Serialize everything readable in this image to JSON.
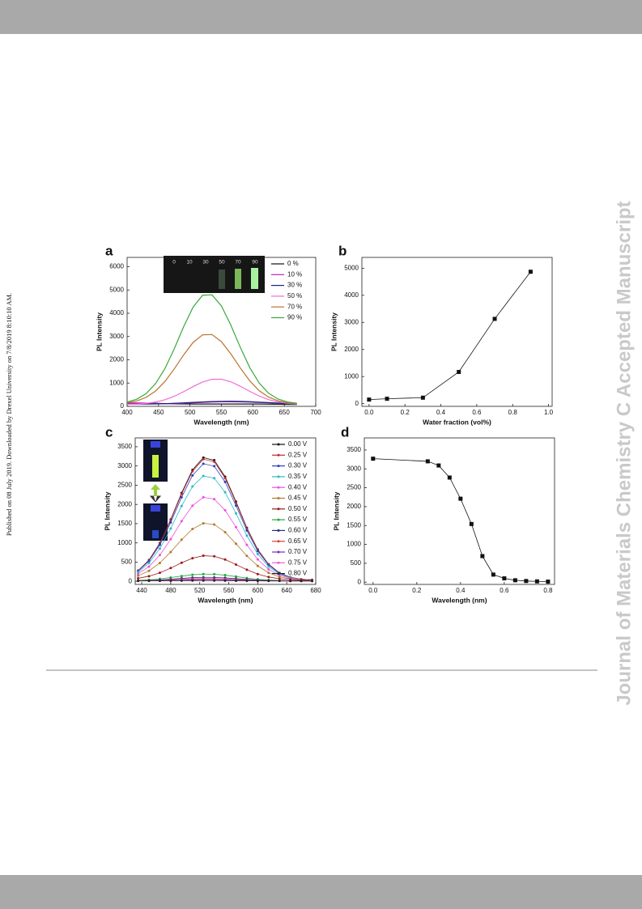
{
  "sidebar_left": "Published on 08 July 2019. Downloaded by Drexel University on 7/8/2019 8:10:10 AM.",
  "sidebar_right": "Journal of Materials Chemistry C Accepted Manuscript",
  "chart_data": [
    {
      "type": "line",
      "panel_label": "a",
      "xlabel": "Wavelength (nm)",
      "ylabel": "PL Intensity",
      "inset_labels": [
        "0",
        "10",
        "30",
        "50",
        "70",
        "90"
      ],
      "xlim": [
        400,
        700
      ],
      "xticks": [
        400,
        450,
        500,
        550,
        600,
        650,
        700
      ],
      "ylim": [
        0,
        6400
      ],
      "yticks": [
        0,
        1000,
        2000,
        3000,
        4000,
        5000,
        6000
      ],
      "x": [
        400,
        415,
        430,
        445,
        460,
        475,
        490,
        505,
        520,
        535,
        550,
        565,
        580,
        595,
        610,
        625,
        640,
        655,
        670
      ],
      "series": [
        {
          "name": "0  %",
          "color": "#111111",
          "values": [
            120,
            130,
            135,
            130,
            120,
            110,
            105,
            100,
            100,
            100,
            100,
            100,
            100,
            100,
            100,
            95,
            90,
            85,
            80
          ]
        },
        {
          "name": "10 %",
          "color": "#c020c0",
          "values": [
            140,
            150,
            140,
            120,
            110,
            115,
            130,
            150,
            170,
            185,
            195,
            195,
            190,
            180,
            165,
            150,
            135,
            120,
            110
          ]
        },
        {
          "name": "30 %",
          "color": "#1a237e",
          "values": [
            100,
            100,
            100,
            105,
            115,
            130,
            150,
            170,
            190,
            205,
            215,
            218,
            212,
            200,
            180,
            160,
            140,
            120,
            105
          ]
        },
        {
          "name": "50 %",
          "color": "#f06ad8",
          "values": [
            88,
            99,
            127,
            183,
            281,
            431,
            630,
            850,
            1045,
            1162,
            1167,
            1056,
            864,
            644,
            443,
            289,
            188,
            130,
            101
          ]
        },
        {
          "name": "70 %",
          "color": "#b8742e",
          "values": [
            153,
            229,
            382,
            653,
            1063,
            1610,
            2214,
            2749,
            3072,
            3084,
            2779,
            2253,
            1649,
            1097,
            674,
            396,
            236,
            156,
            121
          ]
        },
        {
          "name": "90 %",
          "color": "#3aa83a",
          "values": [
            183,
            303,
            544,
            969,
            1615,
            2475,
            3425,
            4266,
            4774,
            4793,
            4313,
            3487,
            2537,
            1668,
            1003,
            566,
            314,
            189,
            133
          ]
        }
      ]
    },
    {
      "type": "line",
      "panel_label": "b",
      "markers": "square",
      "xlabel": "Water fraction (vol%)",
      "ylabel": "PL Intensity",
      "xlim": [
        -0.04,
        1.02
      ],
      "xticks": [
        {
          "value": 0,
          "label": "0.0"
        },
        0.2,
        0.4,
        0.6,
        0.8,
        {
          "value": 1,
          "label": "1.0"
        }
      ],
      "ylim": [
        -100,
        5400
      ],
      "yticks": [
        0,
        1000,
        2000,
        3000,
        4000,
        5000
      ],
      "x": [
        0,
        0.1,
        0.3,
        0.5,
        0.7,
        0.9
      ],
      "series": [
        {
          "color": "#111111",
          "values": [
            150,
            180,
            220,
            1170,
            3130,
            4870
          ]
        }
      ]
    },
    {
      "type": "line",
      "panel_label": "c",
      "markers": "circle",
      "xlabel": "Wavelength (nm)",
      "ylabel": "PL Intensity",
      "xlim": [
        431,
        680
      ],
      "xticks": [
        440,
        480,
        520,
        560,
        600,
        640,
        680
      ],
      "ylim": [
        -80,
        3730
      ],
      "yticks": [
        0,
        500,
        1000,
        1500,
        2000,
        2500,
        3000,
        3500
      ],
      "x": [
        435,
        450,
        465,
        480,
        495,
        510,
        525,
        540,
        555,
        570,
        585,
        600,
        615,
        630,
        645,
        660,
        675
      ],
      "series": [
        {
          "name": "0.00 V",
          "color": "#111111",
          "values": [
            277,
            553,
            996,
            1609,
            2299,
            2897,
            3218,
            3150,
            2720,
            2072,
            1391,
            829,
            444,
            219,
            105,
            57,
            38
          ]
        },
        {
          "name": "0.25 V",
          "color": "#c0282c",
          "values": [
            274,
            547,
            984,
            1590,
            2271,
            2861,
            3178,
            3111,
            2686,
            2046,
            1374,
            819,
            439,
            217,
            104,
            56,
            38
          ]
        },
        {
          "name": "0.30 V",
          "color": "#2c3fc0",
          "values": [
            265,
            527,
            948,
            1531,
            2186,
            2754,
            3059,
            2995,
            2586,
            1970,
            1323,
            789,
            423,
            210,
            102,
            55,
            38
          ]
        },
        {
          "name": "0.35 V",
          "color": "#2ab8c8",
          "values": [
            240,
            475,
            852,
            1373,
            1960,
            2468,
            2741,
            2684,
            2318,
            1766,
            1188,
            710,
            382,
            191,
            94,
            53,
            37
          ]
        },
        {
          "name": "0.40 V",
          "color": "#ee4ee0",
          "values": [
            197,
            384,
            683,
            1098,
            1564,
            1968,
            2185,
            2139,
            1848,
            1410,
            950,
            570,
            310,
            158,
            81,
            48,
            36
          ]
        },
        {
          "name": "0.45 V",
          "color": "#b07a2e",
          "values": [
            145,
            273,
            478,
            763,
            1083,
            1361,
            1510,
            1478,
            1279,
            978,
            662,
            401,
            222,
            118,
            65,
            42,
            34
          ]
        },
        {
          "name": "0.50 V",
          "color": "#9c1818",
          "values": [
            79,
            134,
            223,
            345,
            482,
            602,
            666,
            652,
            566,
            437,
            301,
            189,
            113,
            68,
            45,
            35,
            32
          ]
        },
        {
          "name": "0.55 V",
          "color": "#22a83a",
          "values": [
            24,
            39,
            64,
            99,
            137,
            171,
            189,
            185,
            161,
            124,
            86,
            55,
            33,
            21,
            14,
            11,
            10
          ]
        },
        {
          "name": "0.60 V",
          "color": "#22307a",
          "values": [
            17,
            25,
            39,
            57,
            77,
            95,
            104,
            102,
            90,
            70,
            50,
            34,
            22,
            16,
            12,
            11,
            10
          ]
        },
        {
          "name": "0.65 V",
          "color": "#e83a3a",
          "values": [
            15,
            20,
            28,
            40,
            52,
            64,
            70,
            68,
            60,
            48,
            35,
            25,
            18,
            14,
            11,
            10,
            10
          ]
        },
        {
          "name": "0.70 V",
          "color": "#7a28c8",
          "values": [
            13,
            17,
            22,
            30,
            38,
            46,
            50,
            49,
            44,
            35,
            27,
            20,
            15,
            12,
            11,
            10,
            10
          ]
        },
        {
          "name": "0.75 V",
          "color": "#e860d8",
          "values": [
            12,
            13,
            16,
            20,
            24,
            28,
            30,
            29,
            27,
            23,
            18,
            15,
            13,
            11,
            10,
            10,
            10
          ]
        },
        {
          "name": "0.80 V",
          "color": "#222222",
          "values": [
            11,
            12,
            13,
            15,
            17,
            19,
            20,
            20,
            18,
            16,
            14,
            12,
            11,
            11,
            10,
            10,
            10
          ]
        }
      ]
    },
    {
      "type": "line",
      "panel_label": "d",
      "markers": "square",
      "xlabel": "Wavelength (nm)",
      "ylabel": "PL Intensity",
      "xlim": [
        -0.04,
        0.83
      ],
      "xticks": [
        {
          "value": 0,
          "label": "0.0"
        },
        0.2,
        0.4,
        0.6,
        0.8
      ],
      "ylim": [
        -60,
        3820
      ],
      "yticks": [
        0,
        500,
        1000,
        1500,
        2000,
        2500,
        3000,
        3500
      ],
      "x": [
        0,
        0.25,
        0.3,
        0.35,
        0.4,
        0.45,
        0.5,
        0.55,
        0.6,
        0.65,
        0.7,
        0.75,
        0.8
      ],
      "series": [
        {
          "color": "#111111",
          "values": [
            3270,
            3200,
            3090,
            2770,
            2210,
            1540,
            690,
            200,
            100,
            50,
            30,
            20,
            15
          ]
        }
      ]
    }
  ]
}
